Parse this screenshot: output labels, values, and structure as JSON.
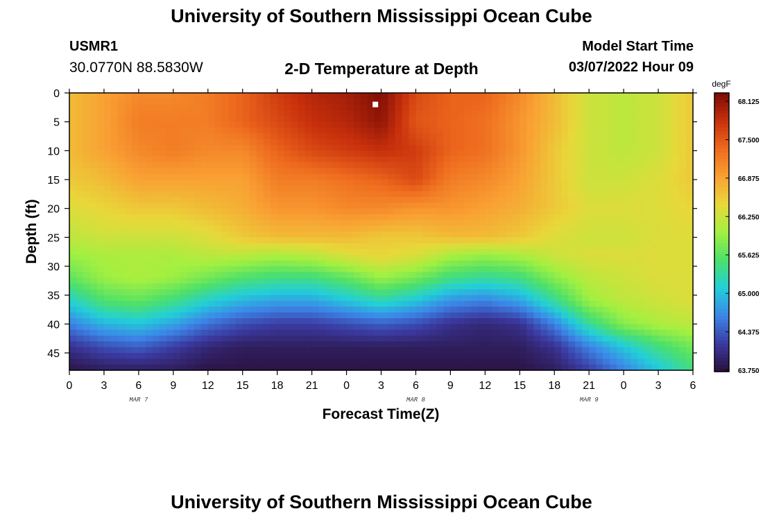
{
  "header": {
    "title": "University of Southern Mississippi Ocean Cube",
    "station_id": "USMR1",
    "coordinates": "30.0770N  88.5830W",
    "subtitle": "2-D Temperature at Depth",
    "model_start_label": "Model Start Time",
    "model_start_value": "03/07/2022 Hour 09"
  },
  "footer": {
    "title": "University of Southern Mississippi Ocean Cube"
  },
  "chart_data": {
    "type": "heatmap",
    "xlabel": "Forecast Time(Z)",
    "ylabel": "Depth (ft)",
    "x_ticks": [
      "0",
      "3",
      "6",
      "9",
      "12",
      "15",
      "18",
      "21",
      "0",
      "3",
      "6",
      "9",
      "12",
      "15",
      "18",
      "21",
      "0",
      "3",
      "6"
    ],
    "x_range_hours": [
      0,
      54
    ],
    "date_labels": [
      {
        "label": "MAR 7",
        "hour": 6
      },
      {
        "label": "MAR 8",
        "hour": 30
      },
      {
        "label": "MAR 9",
        "hour": 45
      }
    ],
    "y_ticks": [
      0,
      5,
      10,
      15,
      20,
      25,
      30,
      35,
      40,
      45
    ],
    "ylim": [
      0,
      48
    ],
    "y_inverted": true,
    "colorbar": {
      "unit": "degF",
      "min": 63.75,
      "max": 68.125,
      "tick_labels": [
        "68.125",
        "67.500",
        "66.875",
        "66.250",
        "65.625",
        "65.000",
        "64.375",
        "63.750"
      ],
      "colors": [
        "#2a0f3a",
        "#3b3aa0",
        "#3c86e8",
        "#22cfd8",
        "#4de06a",
        "#a3f040",
        "#e8d83a",
        "#f9a033",
        "#ee6a1e",
        "#c8300c",
        "#7a0c05"
      ]
    },
    "current_time_marker": {
      "hour": 26.5,
      "depth": 2
    },
    "depth_levels_ft": [
      0,
      5,
      10,
      15,
      20,
      25,
      28,
      32,
      36,
      40,
      44,
      48
    ],
    "temperature_hours": [
      0,
      3,
      6,
      9,
      12,
      15,
      18,
      21,
      24,
      27,
      30,
      33,
      36,
      39,
      42,
      45,
      48,
      51,
      54
    ],
    "temperature_degF": [
      [
        66.6,
        66.8,
        67.0,
        67.0,
        67.1,
        67.3,
        67.6,
        67.8,
        67.9,
        68.1,
        67.5,
        67.3,
        67.3,
        67.0,
        66.6,
        66.2,
        66.1,
        66.2,
        66.5
      ],
      [
        66.6,
        66.8,
        67.1,
        67.1,
        67.1,
        67.3,
        67.5,
        67.7,
        67.8,
        68.0,
        67.4,
        67.3,
        67.2,
        66.9,
        66.6,
        66.2,
        66.1,
        66.2,
        66.5
      ],
      [
        66.6,
        66.8,
        67.0,
        67.1,
        67.0,
        67.0,
        67.3,
        67.5,
        67.6,
        67.7,
        67.6,
        67.3,
        67.2,
        66.9,
        66.5,
        66.2,
        66.1,
        66.2,
        66.5
      ],
      [
        66.5,
        66.6,
        66.8,
        66.8,
        66.8,
        66.8,
        67.1,
        67.1,
        67.2,
        67.3,
        67.5,
        67.1,
        67.0,
        66.8,
        66.5,
        66.2,
        66.2,
        66.3,
        66.5
      ],
      [
        66.3,
        66.4,
        66.5,
        66.5,
        66.6,
        66.7,
        66.9,
        66.9,
        67.0,
        67.0,
        66.9,
        66.9,
        66.8,
        66.7,
        66.5,
        66.3,
        66.3,
        66.3,
        66.4
      ],
      [
        66.1,
        66.2,
        66.2,
        66.2,
        66.3,
        66.5,
        66.6,
        66.6,
        66.6,
        66.5,
        66.5,
        66.6,
        66.6,
        66.5,
        66.3,
        66.2,
        66.2,
        66.3,
        66.3
      ],
      [
        65.9,
        66.0,
        66.0,
        66.0,
        66.1,
        66.1,
        66.0,
        66.1,
        66.3,
        66.4,
        66.3,
        66.0,
        65.9,
        66.0,
        66.2,
        66.3,
        66.3,
        66.3,
        66.3
      ],
      [
        65.6,
        65.9,
        66.0,
        65.9,
        65.7,
        65.5,
        65.4,
        65.4,
        65.6,
        65.9,
        65.7,
        65.4,
        65.3,
        65.4,
        65.8,
        66.1,
        66.2,
        66.3,
        66.3
      ],
      [
        65.1,
        65.5,
        65.6,
        65.4,
        65.1,
        64.9,
        64.8,
        64.8,
        65.0,
        65.2,
        65.0,
        64.7,
        64.6,
        64.8,
        65.3,
        65.9,
        66.1,
        66.2,
        66.3
      ],
      [
        64.6,
        64.9,
        65.0,
        64.8,
        64.5,
        64.3,
        64.2,
        64.2,
        64.3,
        64.4,
        64.3,
        64.1,
        64.0,
        64.1,
        64.6,
        65.3,
        65.8,
        66.0,
        66.1
      ],
      [
        64.1,
        64.3,
        64.4,
        64.2,
        64.0,
        63.9,
        63.9,
        63.9,
        63.9,
        63.9,
        63.9,
        63.9,
        63.9,
        63.9,
        64.1,
        64.6,
        65.0,
        65.4,
        65.7
      ],
      [
        63.8,
        63.9,
        63.9,
        63.9,
        63.8,
        63.8,
        63.8,
        63.8,
        63.8,
        63.8,
        63.8,
        63.8,
        63.8,
        63.8,
        63.9,
        64.2,
        64.6,
        65.0,
        65.4
      ]
    ]
  }
}
